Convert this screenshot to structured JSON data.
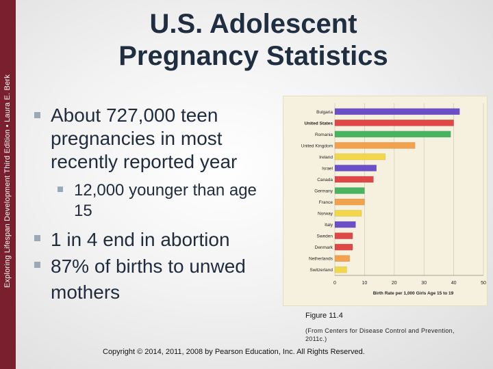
{
  "sidebar_text": "Exploring Lifespan Development Third Edition • Laura E. Berk",
  "title": "U.S. Adolescent Pregnancy Statistics",
  "bullets": [
    {
      "text": "About 727,000 teen pregnancies in most recently reported year"
    },
    {
      "text": "12,000 younger than age 15"
    },
    {
      "text": "1 in 4 end in abortion"
    },
    {
      "text": "87% of births to unwed mothers"
    }
  ],
  "figure_caption": "Figure 11.4",
  "figure_credit": "(From Centers for Disease Control and Prevention, 2011c.)",
  "copyright": "Copyright © 2014, 2011, 2008 by Pearson Education, Inc. All Rights Reserved.",
  "colors": {
    "sidebar": "#7a1f2e",
    "Bulgaria": "#6a4fc8",
    "United States": "#e04747",
    "Romania": "#48b460",
    "United Kingdom": "#f2a24c",
    "Ireland": "#f2d74a",
    "Israel": "#6a4fc8",
    "Canada": "#e04747",
    "Germany": "#48b460",
    "France": "#f2a24c",
    "Norway": "#f2d74a",
    "Italy": "#6a4fc8",
    "Sweden": "#e04747",
    "Denmark": "#e04747",
    "Netherlands": "#f2a24c",
    "Switzerland": "#f2d74a"
  },
  "chart_data": {
    "type": "bar",
    "orientation": "horizontal",
    "categories": [
      "Bulgaria",
      "United States",
      "Romania",
      "United Kingdom",
      "Ireland",
      "Israel",
      "Canada",
      "Germany",
      "France",
      "Norway",
      "Italy",
      "Sweden",
      "Denmark",
      "Netherlands",
      "Switzerland"
    ],
    "values": [
      42,
      40,
      39,
      27,
      17,
      14,
      13,
      10,
      10,
      9,
      7,
      6,
      6,
      5,
      4
    ],
    "highlight": "United States",
    "xlabel": "Birth Rate per 1,000 Girls Age 15 to 19",
    "xlim": [
      0,
      50
    ],
    "xticks": [
      0,
      10,
      20,
      30,
      40,
      50
    ],
    "grid": true
  }
}
